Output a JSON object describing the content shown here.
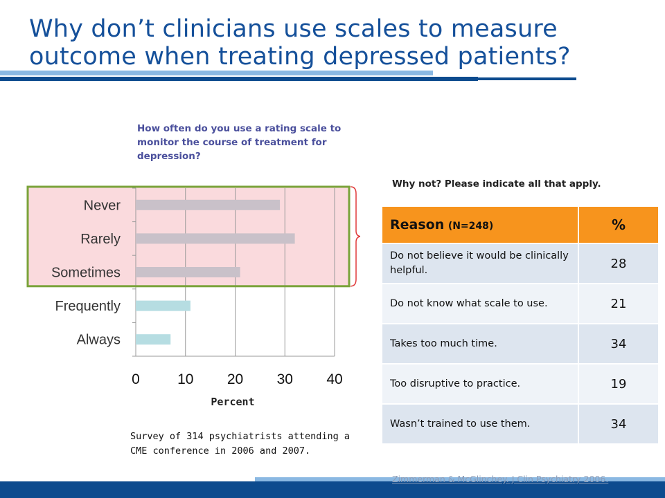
{
  "slide": {
    "title_line1": "Why don’t clinicians use scales to measure",
    "title_line2": "outcome when treating depressed patients?",
    "question": "How often do you use a rating scale to monitor the course of treatment for depression?",
    "survey_note": "Survey of 314 psychiatrists attending a CME conference in 2006 and 2007.",
    "citation": "Zimmerman & McGlinchey. J Clin Psychiatry 2006."
  },
  "table": {
    "caption": "Why not? Please indicate all that apply.",
    "header_reason": "Reason",
    "header_n": "(N=248)",
    "header_pct": "%",
    "rows": [
      {
        "reason": "Do not believe it would be clinically helpful.",
        "pct": "28"
      },
      {
        "reason": "Do not know what scale to use.",
        "pct": "21"
      },
      {
        "reason": "Takes too much time.",
        "pct": "34"
      },
      {
        "reason": "Too disruptive to practice.",
        "pct": "19"
      },
      {
        "reason": "Wasn’t trained to use them.",
        "pct": "34"
      }
    ]
  },
  "colors": {
    "title": "#15509a",
    "highlight_fill": "#fadadd",
    "highlight_border": "#7aa33a",
    "bar_highlighted": "#c9c1c9",
    "bar_normal": "#b6dde2",
    "table_header": "#f7941d",
    "brace": "#e03a3a"
  },
  "chart_data": {
    "type": "bar",
    "orientation": "horizontal",
    "categories": [
      "Never",
      "Rarely",
      "Sometimes",
      "Frequently",
      "Always"
    ],
    "values": [
      29,
      32,
      21,
      11,
      7
    ],
    "highlighted": [
      "Never",
      "Rarely",
      "Sometimes"
    ],
    "xlabel": "Percent",
    "ylabel": "",
    "xlim": [
      0,
      40
    ],
    "xticks": [
      "0",
      "10",
      "20",
      "30",
      "40"
    ],
    "grid": "vertical"
  }
}
